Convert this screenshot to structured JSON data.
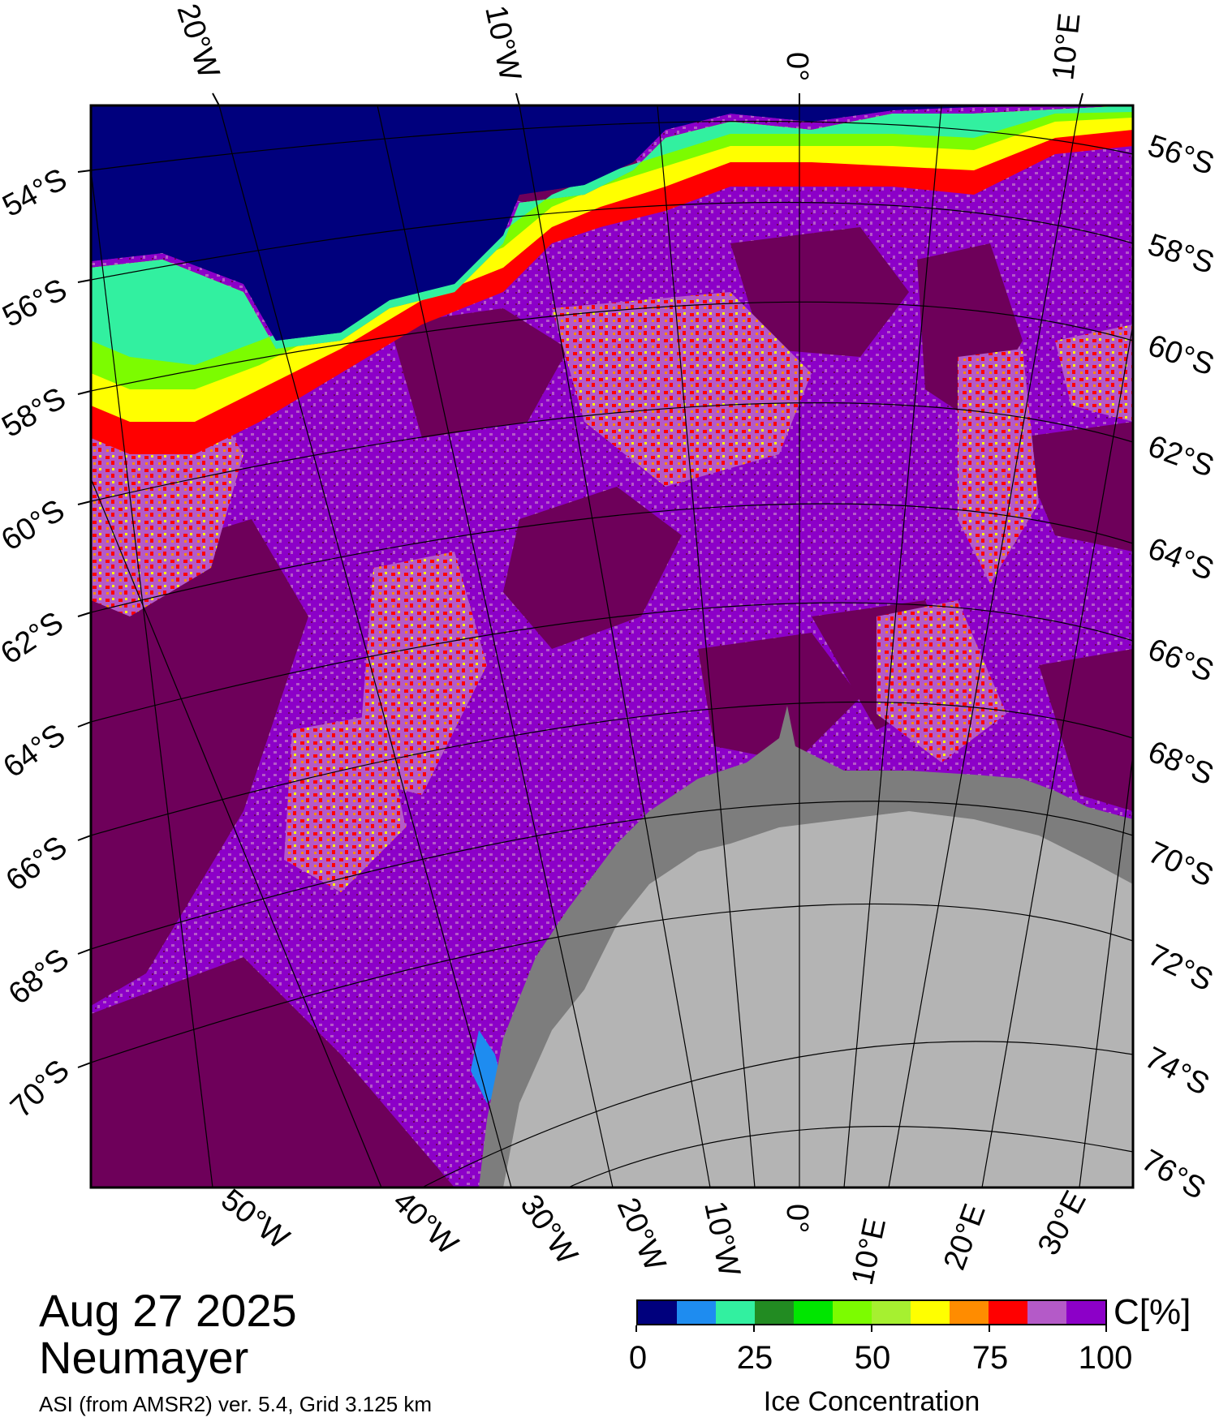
{
  "date": "Aug 27 2025",
  "station": "Neumayer",
  "source": "ASI (from AMSR2) ver. 5.4,  Grid 3.125 km",
  "colorbar": {
    "unit": "C[%]",
    "title": "Ice Concentration",
    "tick_labels": [
      "0",
      "25",
      "50",
      "75",
      "100"
    ],
    "colors": [
      "#00007d",
      "#1e8cf0",
      "#32f0a0",
      "#228b22",
      "#00e600",
      "#7cfc00",
      "#a6f030",
      "#ffff00",
      "#ff8c00",
      "#ff0000",
      "#b45ac8",
      "#8c00c8"
    ],
    "land_color": "#b4b4b4",
    "ice_shelf_color": "#7d7d7d",
    "ocean_color": "#00007d",
    "dense_ice_color": "#6e005a"
  },
  "axis_labels": {
    "top": [
      "20°W",
      "10°W",
      "0°",
      "10°E"
    ],
    "left": [
      "54°S",
      "56°S",
      "58°S",
      "60°S",
      "62°S",
      "64°S",
      "66°S",
      "68°S",
      "70°S"
    ],
    "right": [
      "56°S",
      "58°S",
      "60°S",
      "62°S",
      "64°S",
      "66°S",
      "68°S",
      "70°S",
      "72°S",
      "74°S",
      "76°S"
    ],
    "bottom": [
      "50°W",
      "40°W",
      "30°W",
      "20°W",
      "10°W",
      "0°",
      "10°E",
      "20°E",
      "30°E"
    ]
  }
}
